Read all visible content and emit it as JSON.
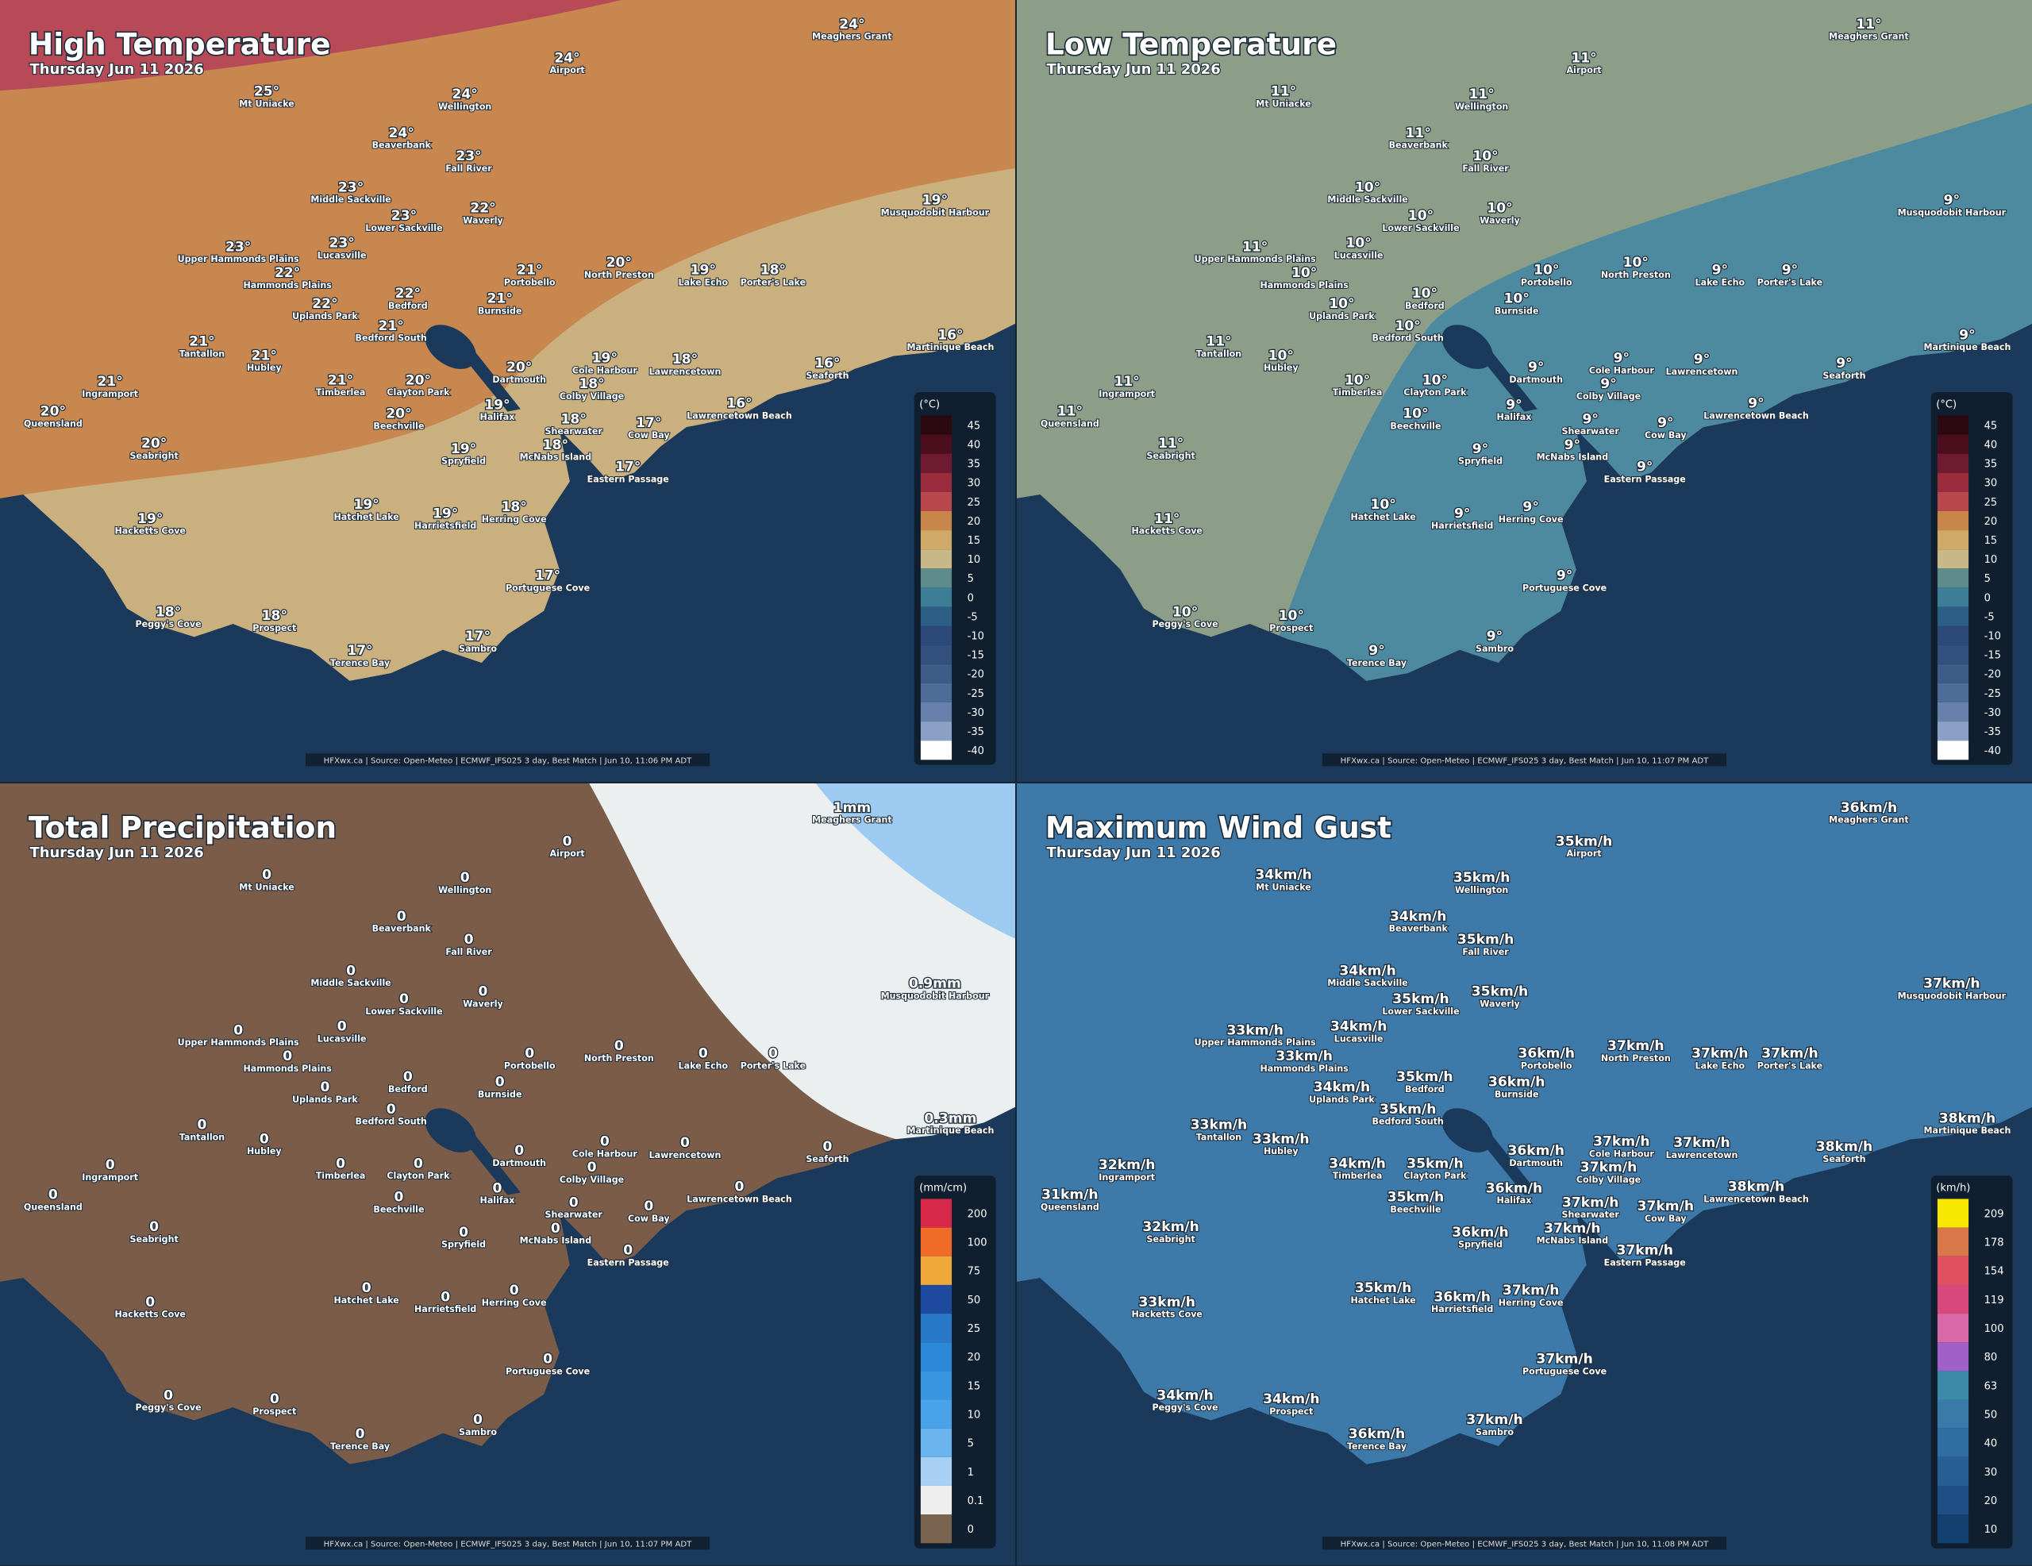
{
  "places": [
    "Meaghers Grant",
    "Airport",
    "Mt Uniacke",
    "Wellington",
    "Beaverbank",
    "Fall River",
    "Middle Sackville",
    "Musquodobit Harbour",
    "Lower Sackville",
    "Waverly",
    "Upper Hammonds Plains",
    "Lucasville",
    "Hammonds Plains",
    "Portobello",
    "North Preston",
    "Lake Echo",
    "Porter's Lake",
    "Uplands Park",
    "Bedford",
    "Burnside",
    "Bedford South",
    "Tantallon",
    "Hubley",
    "Martinique Beach",
    "Cole Harbour",
    "Lawrencetown",
    "Timberlea",
    "Clayton Park",
    "Dartmouth",
    "Colby Village",
    "Seaforth",
    "Ingramport",
    "Queensland",
    "Halifax",
    "Beechville",
    "Lawrencetown Beach",
    "Shearwater",
    "Cow Bay",
    "McNabs Island",
    "Spryfield",
    "Seabright",
    "Eastern Passage",
    "Hatchet Lake",
    "Harrietsfield",
    "Herring Cove",
    "Hacketts Cove",
    "Portuguese Cove",
    "Peggy's Cove",
    "Prospect",
    "Terence Bay",
    "Sambro"
  ],
  "panels": [
    {
      "title": "High Temperature",
      "subtitle": "Thursday Jun 11 2026",
      "values": [
        "24°",
        "24°",
        "25°",
        "24°",
        "24°",
        "23°",
        "23°",
        "19°",
        "23°",
        "22°",
        "23°",
        "23°",
        "22°",
        "21°",
        "20°",
        "19°",
        "18°",
        "22°",
        "22°",
        "21°",
        "21°",
        "21°",
        "21°",
        "16°",
        "19°",
        "18°",
        "21°",
        "20°",
        "20°",
        "18°",
        "16°",
        "21°",
        "20°",
        "19°",
        "20°",
        "16°",
        "18°",
        "17°",
        "18°",
        "19°",
        "20°",
        "17°",
        "19°",
        "19°",
        "18°",
        "19°",
        "17°",
        "18°",
        "18°",
        "17°",
        "17°"
      ],
      "legend": {
        "unit": "(°C)",
        "labels": [
          "45",
          "40",
          "35",
          "30",
          "25",
          "20",
          "15",
          "10",
          "5",
          "0",
          "-5",
          "-10",
          "-15",
          "-20",
          "-25",
          "-30",
          "-35",
          "-40"
        ],
        "colors": [
          "#2a0a10",
          "#4a0e1c",
          "#6e1a30",
          "#9a2c3e",
          "#b8484e",
          "#c8864a",
          "#d0a868",
          "#c8b888",
          "#5d8c8a",
          "#3e7d96",
          "#2d5f86",
          "#2b4a7a",
          "#34507e",
          "#3e5c88",
          "#4e6c98",
          "#6880ac",
          "#8aa0c4",
          "#ffffff"
        ]
      },
      "source": "HFXwx.ca | Source: Open-Meteo | ECMWF_IFS025 3 day, Best Match | Jun 10, 11:06 PM ADT"
    },
    {
      "title": "Low Temperature",
      "subtitle": "Thursday Jun 11 2026",
      "values": [
        "11°",
        "11°",
        "11°",
        "11°",
        "11°",
        "10°",
        "10°",
        "9°",
        "10°",
        "10°",
        "11°",
        "10°",
        "10°",
        "10°",
        "10°",
        "9°",
        "9°",
        "10°",
        "10°",
        "10°",
        "10°",
        "11°",
        "10°",
        "9°",
        "9°",
        "9°",
        "10°",
        "10°",
        "9°",
        "9°",
        "9°",
        "11°",
        "11°",
        "9°",
        "10°",
        "9°",
        "9°",
        "9°",
        "9°",
        "9°",
        "11°",
        "9°",
        "10°",
        "9°",
        "9°",
        "11°",
        "9°",
        "10°",
        "10°",
        "9°",
        "9°"
      ],
      "legend": {
        "unit": "(°C)",
        "labels": [
          "45",
          "40",
          "35",
          "30",
          "25",
          "20",
          "15",
          "10",
          "5",
          "0",
          "-5",
          "-10",
          "-15",
          "-20",
          "-25",
          "-30",
          "-35",
          "-40"
        ],
        "colors": [
          "#2a0a10",
          "#4a0e1c",
          "#6e1a30",
          "#9a2c3e",
          "#b8484e",
          "#c8864a",
          "#d0a868",
          "#c8b888",
          "#5d8c8a",
          "#3e7d96",
          "#2d5f86",
          "#2b4a7a",
          "#34507e",
          "#3e5c88",
          "#4e6c98",
          "#6880ac",
          "#8aa0c4",
          "#ffffff"
        ]
      },
      "source": "HFXwx.ca | Source: Open-Meteo | ECMWF_IFS025 3 day, Best Match | Jun 10, 11:07 PM ADT"
    },
    {
      "title": "Total Precipitation",
      "subtitle": "Thursday Jun 11 2026",
      "values": [
        "1mm",
        "0",
        "0",
        "0",
        "0",
        "0",
        "0",
        "0.9mm",
        "0",
        "0",
        "0",
        "0",
        "0",
        "0",
        "0",
        "0",
        "0",
        "0",
        "0",
        "0",
        "0",
        "0",
        "0",
        "0.3mm",
        "0",
        "0",
        "0",
        "0",
        "0",
        "0",
        "0",
        "0",
        "0",
        "0",
        "0",
        "0",
        "0",
        "0",
        "0",
        "0",
        "0",
        "0",
        "0",
        "0",
        "0",
        "0",
        "0",
        "0",
        "0",
        "0",
        "0"
      ],
      "legend": {
        "unit": "(mm/cm)",
        "labels": [
          "200",
          "100",
          "75",
          "50",
          "25",
          "20",
          "15",
          "10",
          "5",
          "1",
          "0.1",
          "0"
        ],
        "colors": [
          "#d8284a",
          "#f06a28",
          "#f0a838",
          "#1e4aa0",
          "#2a78c8",
          "#2c88d8",
          "#3896e0",
          "#4aa2e8",
          "#6ab4f0",
          "#a8d0f4",
          "#eeeeee",
          "#7a6450"
        ]
      },
      "source": "HFXwx.ca | Source: Open-Meteo | ECMWF_IFS025 3 day, Best Match | Jun 10, 11:07 PM ADT"
    },
    {
      "title": "Maximum Wind Gust",
      "subtitle": "Thursday Jun 11 2026",
      "values": [
        "36km/h",
        "35km/h",
        "34km/h",
        "35km/h",
        "34km/h",
        "35km/h",
        "34km/h",
        "37km/h",
        "35km/h",
        "35km/h",
        "33km/h",
        "34km/h",
        "33km/h",
        "36km/h",
        "37km/h",
        "37km/h",
        "37km/h",
        "34km/h",
        "35km/h",
        "36km/h",
        "35km/h",
        "33km/h",
        "33km/h",
        "38km/h",
        "37km/h",
        "37km/h",
        "34km/h",
        "35km/h",
        "36km/h",
        "37km/h",
        "38km/h",
        "32km/h",
        "31km/h",
        "36km/h",
        "35km/h",
        "38km/h",
        "37km/h",
        "37km/h",
        "37km/h",
        "36km/h",
        "32km/h",
        "37km/h",
        "35km/h",
        "36km/h",
        "37km/h",
        "33km/h",
        "37km/h",
        "34km/h",
        "34km/h",
        "36km/h",
        "37km/h"
      ],
      "legend": {
        "unit": "(km/h)",
        "labels": [
          "209",
          "178",
          "154",
          "119",
          "100",
          "80",
          "63",
          "50",
          "40",
          "30",
          "20",
          "10"
        ],
        "colors": [
          "#f8e800",
          "#d87848",
          "#e05060",
          "#d8487a",
          "#d868a8",
          "#a060c8",
          "#3a8aa8",
          "#3a7aa8",
          "#2e6ea0",
          "#285e92",
          "#1e4e84",
          "#144070"
        ]
      },
      "source": "HFXwx.ca | Source: Open-Meteo | ECMWF_IFS025 3 day, Best Match | Jun 10, 11:08 PM ADT"
    }
  ]
}
